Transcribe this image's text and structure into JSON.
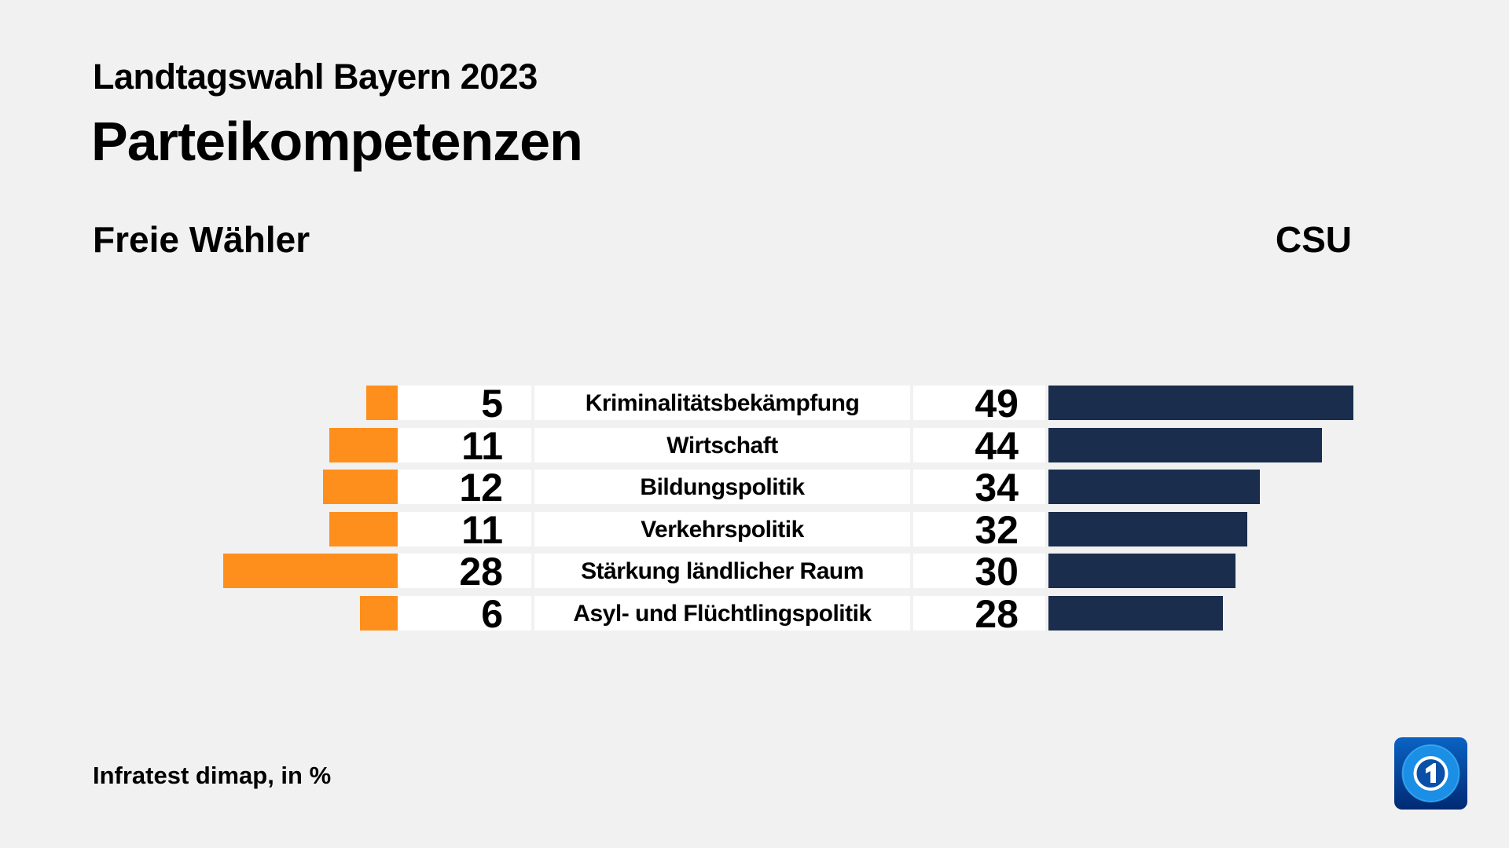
{
  "header": {
    "subtitle": "Landtagswahl Bayern 2023",
    "title": "Parteikompetenzen"
  },
  "footer": {
    "source": "Infratest dimap, in %"
  },
  "logo": {
    "name": "tagesschau-logo",
    "text": "1"
  },
  "chart_data": {
    "type": "bar",
    "title": "Parteikompetenzen",
    "subtitle": "Landtagswahl Bayern 2023",
    "orientation": "diverging-horizontal",
    "categories": [
      "Kriminalitätsbekämpfung",
      "Wirtschaft",
      "Bildungspolitik",
      "Verkehrspolitik",
      "Stärkung ländlicher Raum",
      "Asyl- und Flüchtlingspolitik"
    ],
    "series": [
      {
        "name": "Freie Wähler",
        "side": "left",
        "color": "#ff8f1c",
        "values": [
          5,
          11,
          12,
          11,
          28,
          6
        ]
      },
      {
        "name": "CSU",
        "side": "right",
        "color": "#1a2d4c",
        "values": [
          49,
          44,
          34,
          32,
          30,
          28
        ]
      }
    ],
    "unit": "%",
    "grid": false
  }
}
